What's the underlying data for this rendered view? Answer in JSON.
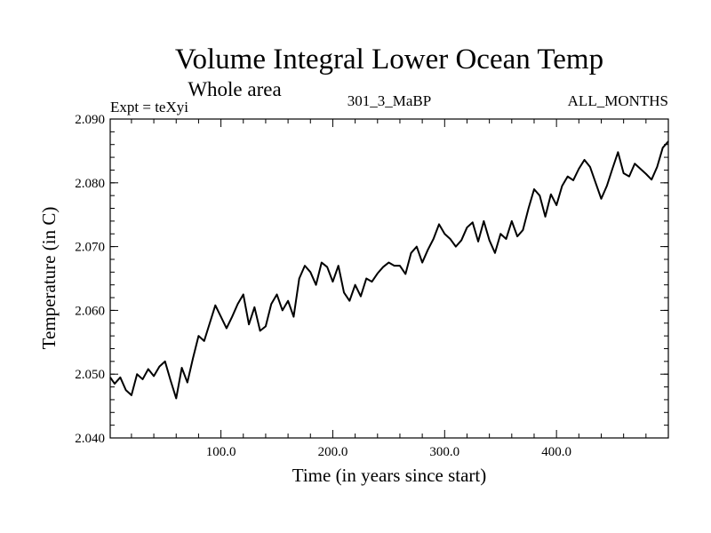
{
  "chart_data": {
    "type": "line",
    "title": "Volume Integral Lower Ocean Temp",
    "subtitle": "Whole area",
    "annotations": {
      "left": "Expt = teXyi",
      "center": "301_3_MaBP",
      "right": "ALL_MONTHS"
    },
    "xlabel": "Time (in years since start)",
    "ylabel": "Temperature (in C)",
    "xlim": [
      1,
      500
    ],
    "ylim": [
      2.04,
      2.09
    ],
    "x_ticks": [
      100,
      200,
      300,
      400
    ],
    "x_tick_labels": [
      "100.0",
      "200.0",
      "300.0",
      "400.0"
    ],
    "y_ticks": [
      2.04,
      2.05,
      2.06,
      2.07,
      2.08,
      2.09
    ],
    "y_tick_labels": [
      "2.040",
      "2.050",
      "2.060",
      "2.070",
      "2.080",
      "2.090"
    ],
    "grid": false,
    "line_color": "#000000",
    "series": [
      {
        "x": [
          1,
          5,
          10,
          15,
          20,
          25,
          30,
          35,
          40,
          45,
          50,
          55,
          60,
          65,
          70,
          75,
          80,
          85,
          90,
          95,
          100,
          105,
          110,
          115,
          120,
          125,
          130,
          135,
          140,
          145,
          150,
          155,
          160,
          165,
          170,
          175,
          180,
          185,
          190,
          195,
          200,
          205,
          210,
          215,
          220,
          225,
          230,
          235,
          240,
          245,
          250,
          255,
          260,
          265,
          270,
          275,
          280,
          285,
          290,
          295,
          300,
          305,
          310,
          315,
          320,
          325,
          330,
          335,
          340,
          345,
          350,
          355,
          360,
          365,
          370,
          375,
          380,
          385,
          390,
          395,
          400,
          405,
          410,
          415,
          420,
          425,
          430,
          435,
          440,
          445,
          450,
          455,
          460,
          465,
          470,
          475,
          480,
          485,
          490,
          495,
          500
        ],
        "values": [
          2.0495,
          2.0485,
          2.0495,
          2.0475,
          2.0467,
          2.05,
          2.0492,
          2.0508,
          2.0497,
          2.0512,
          2.052,
          2.049,
          2.0462,
          2.051,
          2.0487,
          2.0525,
          2.056,
          2.0552,
          2.058,
          2.0608,
          2.059,
          2.0572,
          2.059,
          2.061,
          2.0625,
          2.0578,
          2.0605,
          2.0568,
          2.0575,
          2.061,
          2.0625,
          2.06,
          2.0615,
          2.059,
          2.065,
          2.067,
          2.066,
          2.064,
          2.0675,
          2.0668,
          2.0645,
          2.067,
          2.0628,
          2.0615,
          2.064,
          2.0622,
          2.065,
          2.0645,
          2.0658,
          2.0668,
          2.0675,
          2.067,
          2.067,
          2.0657,
          2.069,
          2.07,
          2.0675,
          2.0695,
          2.0712,
          2.0735,
          2.072,
          2.0712,
          2.07,
          2.071,
          2.073,
          2.0738,
          2.0708,
          2.074,
          2.071,
          2.069,
          2.072,
          2.0712,
          2.074,
          2.0716,
          2.0726,
          2.076,
          2.079,
          2.078,
          2.0747,
          2.0782,
          2.0765,
          2.0795,
          2.081,
          2.0804,
          2.0822,
          2.0836,
          2.0825,
          2.08,
          2.0775,
          2.0795,
          2.0822,
          2.0848,
          2.0815,
          2.081,
          2.083,
          2.0822,
          2.0814,
          2.0805,
          2.0825,
          2.0855,
          2.0865
        ]
      }
    ]
  }
}
